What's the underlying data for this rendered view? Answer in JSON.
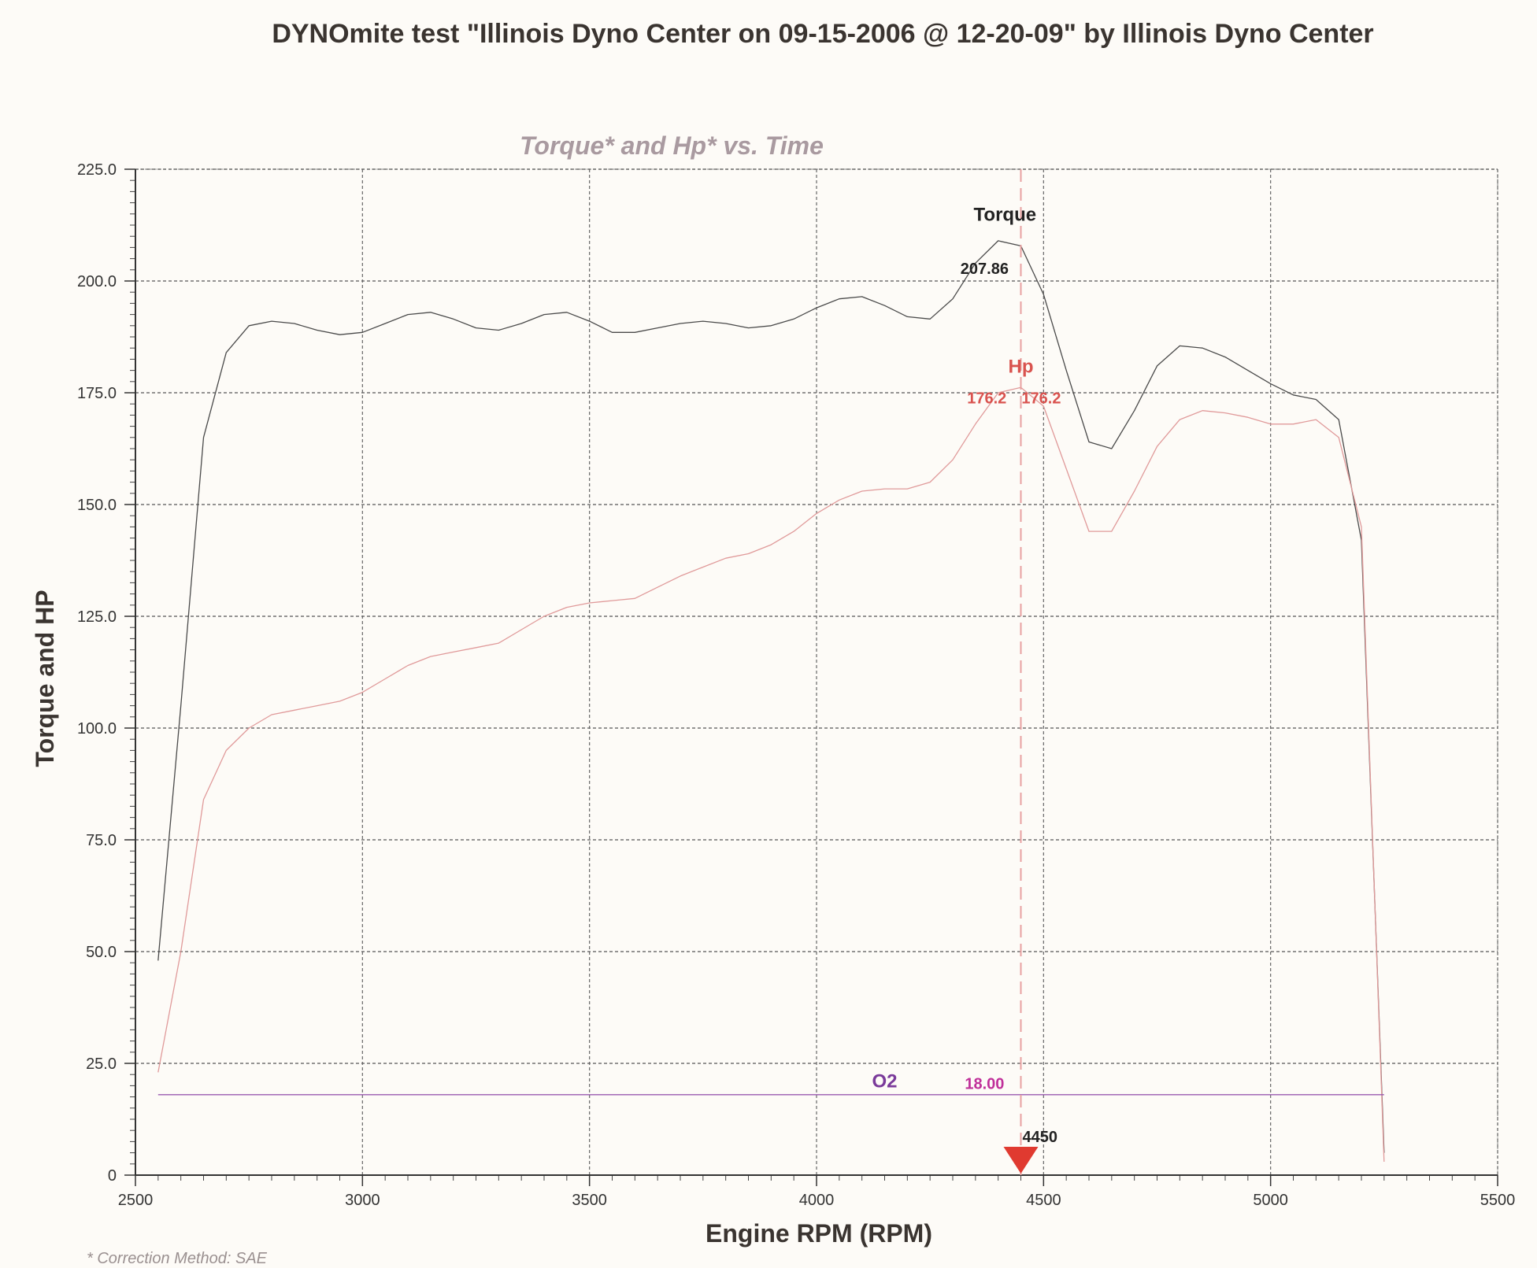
{
  "page": {
    "title": "DYNOmite test \"Illinois Dyno Center on 09-15-2006 @ 12-20-09\" by Illinois Dyno Center",
    "footnote": "* Correction Method: SAE"
  },
  "chart_data": {
    "type": "line",
    "title": "Torque* and Hp* vs. Time",
    "xlabel": "Engine RPM (RPM)",
    "ylabel": "Torque and HP",
    "xlim": [
      2500,
      5500
    ],
    "ylim": [
      0,
      225
    ],
    "x_ticks": [
      "2500",
      "3000",
      "3500",
      "4000",
      "4500",
      "5000",
      "5500"
    ],
    "y_ticks": [
      "0",
      "25.0",
      "50.0",
      "75.0",
      "100.0",
      "125.0",
      "150.0",
      "175.0",
      "200.0",
      "225.0"
    ],
    "grid": true,
    "cursor_rpm": 4450,
    "series": [
      {
        "name": "Torque",
        "color": "#4a4a4a",
        "x": [
          2550,
          2600,
          2650,
          2700,
          2750,
          2800,
          2850,
          2900,
          2950,
          3000,
          3050,
          3100,
          3150,
          3200,
          3250,
          3300,
          3350,
          3400,
          3450,
          3500,
          3550,
          3600,
          3650,
          3700,
          3750,
          3800,
          3850,
          3900,
          3950,
          4000,
          4050,
          4100,
          4150,
          4200,
          4250,
          4300,
          4350,
          4400,
          4450,
          4500,
          4550,
          4600,
          4650,
          4700,
          4750,
          4800,
          4850,
          4900,
          4950,
          5000,
          5050,
          5100,
          5150,
          5200,
          5250
        ],
        "values": [
          48,
          105,
          165,
          184,
          190,
          191,
          190.5,
          189,
          188,
          188.5,
          190.5,
          192.5,
          193,
          191.5,
          189.5,
          189,
          190.5,
          192.5,
          193,
          191,
          188.5,
          188.5,
          189.5,
          190.5,
          191,
          190.5,
          189.5,
          190,
          191.5,
          194,
          196,
          196.5,
          194.5,
          192,
          191.5,
          196,
          204,
          209,
          207.86,
          197,
          180,
          164,
          162.5,
          171,
          181,
          185.5,
          185,
          183,
          180,
          177,
          174.5,
          173.5,
          169,
          142,
          5
        ]
      },
      {
        "name": "Hp",
        "color": "#e09a9a",
        "x": [
          2550,
          2600,
          2650,
          2700,
          2750,
          2800,
          2850,
          2900,
          2950,
          3000,
          3050,
          3100,
          3150,
          3200,
          3250,
          3300,
          3350,
          3400,
          3450,
          3500,
          3550,
          3600,
          3650,
          3700,
          3750,
          3800,
          3850,
          3900,
          3950,
          4000,
          4050,
          4100,
          4150,
          4200,
          4250,
          4300,
          4350,
          4400,
          4450,
          4500,
          4550,
          4600,
          4650,
          4700,
          4750,
          4800,
          4850,
          4900,
          4950,
          5000,
          5050,
          5100,
          5150,
          5200,
          5250
        ],
        "values": [
          23,
          50,
          84,
          95,
          100,
          103,
          104,
          105,
          106,
          108,
          111,
          114,
          116,
          117,
          118,
          119,
          122,
          125,
          127,
          128,
          128.5,
          129,
          131.5,
          134,
          136,
          138,
          139,
          141,
          144,
          148,
          151,
          153,
          153.5,
          153.5,
          155,
          160,
          168,
          175,
          176.2,
          172,
          158,
          144,
          144,
          153,
          163,
          169,
          171,
          170.5,
          169.5,
          168,
          168,
          169,
          165,
          145,
          3
        ]
      },
      {
        "name": "O2",
        "color": "#9a5ab0",
        "x": [
          2550,
          5250
        ],
        "values": [
          18.0,
          18.0
        ]
      }
    ],
    "annotations": {
      "torque_label": "Torque",
      "torque_value": "207.86",
      "hp_label": "Hp",
      "hp_value_left": "176.2",
      "hp_value_right": "176.2",
      "o2_label": "O2",
      "o2_value": "18.00",
      "cursor_label": "4450"
    }
  }
}
